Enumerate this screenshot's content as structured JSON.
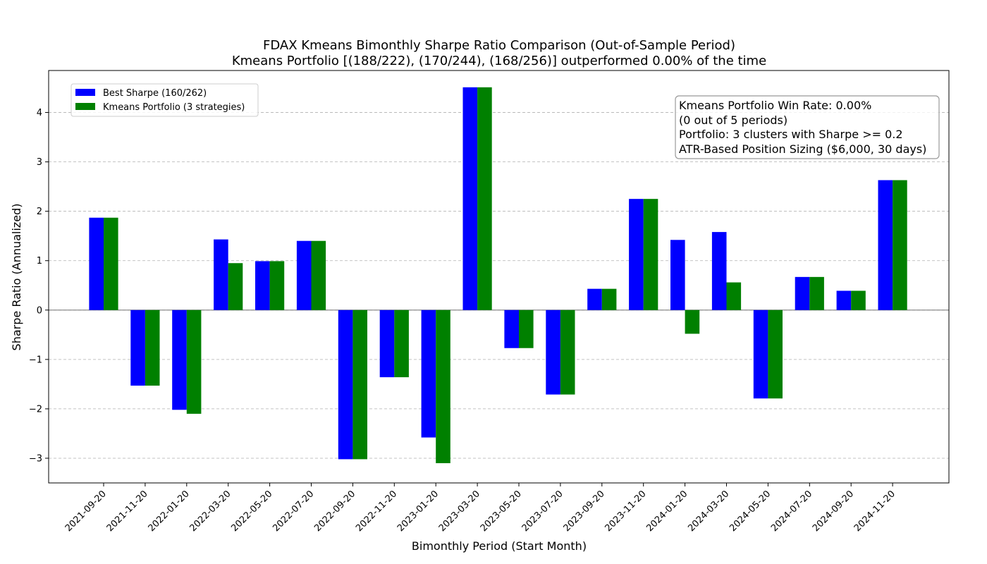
{
  "chart_data": {
    "type": "bar",
    "title": "FDAX Kmeans Bimonthly Sharpe Ratio Comparison (Out-of-Sample Period)",
    "subtitle": "Kmeans Portfolio [(188/222), (170/244), (168/256)] outperformed 0.00% of the time",
    "xlabel": "Bimonthly Period (Start Month)",
    "ylabel": "Sharpe Ratio (Annualized)",
    "ylim": [
      -3.5,
      4.85
    ],
    "yticks": [
      -3,
      -2,
      -1,
      0,
      1,
      2,
      3,
      4
    ],
    "ytick_labels": [
      "−3",
      "−2",
      "−1",
      "0",
      "1",
      "2",
      "3",
      "4"
    ],
    "grid": "y-dashed",
    "categories": [
      "2021-09-20",
      "2021-11-20",
      "2022-01-20",
      "2022-03-20",
      "2022-05-20",
      "2022-07-20",
      "2022-09-20",
      "2022-11-20",
      "2023-01-20",
      "2023-03-20",
      "2023-05-20",
      "2023-07-20",
      "2023-09-20",
      "2023-11-20",
      "2024-01-20",
      "2024-03-20",
      "2024-05-20",
      "2024-07-20",
      "2024-09-20",
      "2024-11-20"
    ],
    "series": [
      {
        "name": "Best Sharpe (160/262)",
        "color": "#0000ff",
        "values": [
          1.87,
          -1.53,
          -2.02,
          1.43,
          0.99,
          1.4,
          -3.02,
          -1.36,
          -2.58,
          4.51,
          -0.77,
          -1.71,
          0.43,
          2.25,
          1.42,
          1.58,
          -1.79,
          0.67,
          0.39,
          2.63
        ]
      },
      {
        "name": "Kmeans Portfolio (3 strategies)",
        "color": "#008000",
        "values": [
          1.87,
          -1.53,
          -2.1,
          0.95,
          0.99,
          1.4,
          -3.02,
          -1.36,
          -3.1,
          4.51,
          -0.77,
          -1.71,
          0.43,
          2.25,
          -0.48,
          0.56,
          -1.79,
          0.67,
          0.39,
          2.63
        ]
      }
    ],
    "legend_position": "top-left",
    "annotation": {
      "position": "top-right",
      "lines": [
        "Kmeans Portfolio Win Rate: 0.00%",
        "(0 out of 5 periods)",
        "Portfolio: 3 clusters with Sharpe >= 0.2",
        "ATR-Based Position Sizing ($6,000, 30 days)"
      ]
    }
  }
}
